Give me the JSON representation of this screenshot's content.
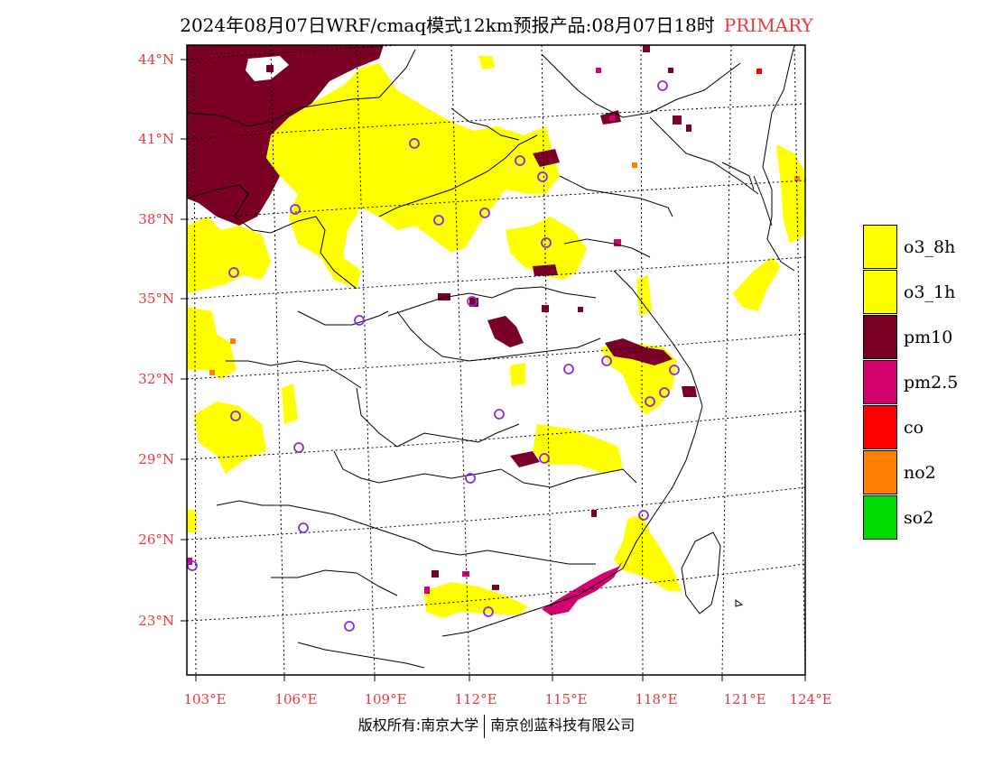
{
  "header": {
    "title": "2024年08月07日WRF/cmaq模式12km预报产品:08月07日18时",
    "tag": "PRIMARY"
  },
  "axes": {
    "lat_labels": [
      "44°N",
      "41°N",
      "38°N",
      "35°N",
      "32°N",
      "29°N",
      "26°N",
      "23°N"
    ],
    "lon_labels": [
      "103°E",
      "106°E",
      "109°E",
      "112°E",
      "115°E",
      "118°E",
      "121°E",
      "124°E"
    ]
  },
  "legend": {
    "items": [
      {
        "label": "o3_8h",
        "color": "#ffff00"
      },
      {
        "label": "o3_1h",
        "color": "#ffff00"
      },
      {
        "label": "pm10",
        "color": "#7a0025"
      },
      {
        "label": "pm2.5",
        "color": "#d4006e"
      },
      {
        "label": "co",
        "color": "#ff0000"
      },
      {
        "label": "no2",
        "color": "#ff8000"
      },
      {
        "label": "so2",
        "color": "#00dd00"
      }
    ]
  },
  "colors": {
    "label_red": "#e8383d",
    "station_circle": "#8a2be2",
    "frame": "#000000"
  },
  "footer": {
    "copyright_left": "版权所有:南京大学",
    "copyright_right": "南京创蓝科技有限公司"
  }
}
